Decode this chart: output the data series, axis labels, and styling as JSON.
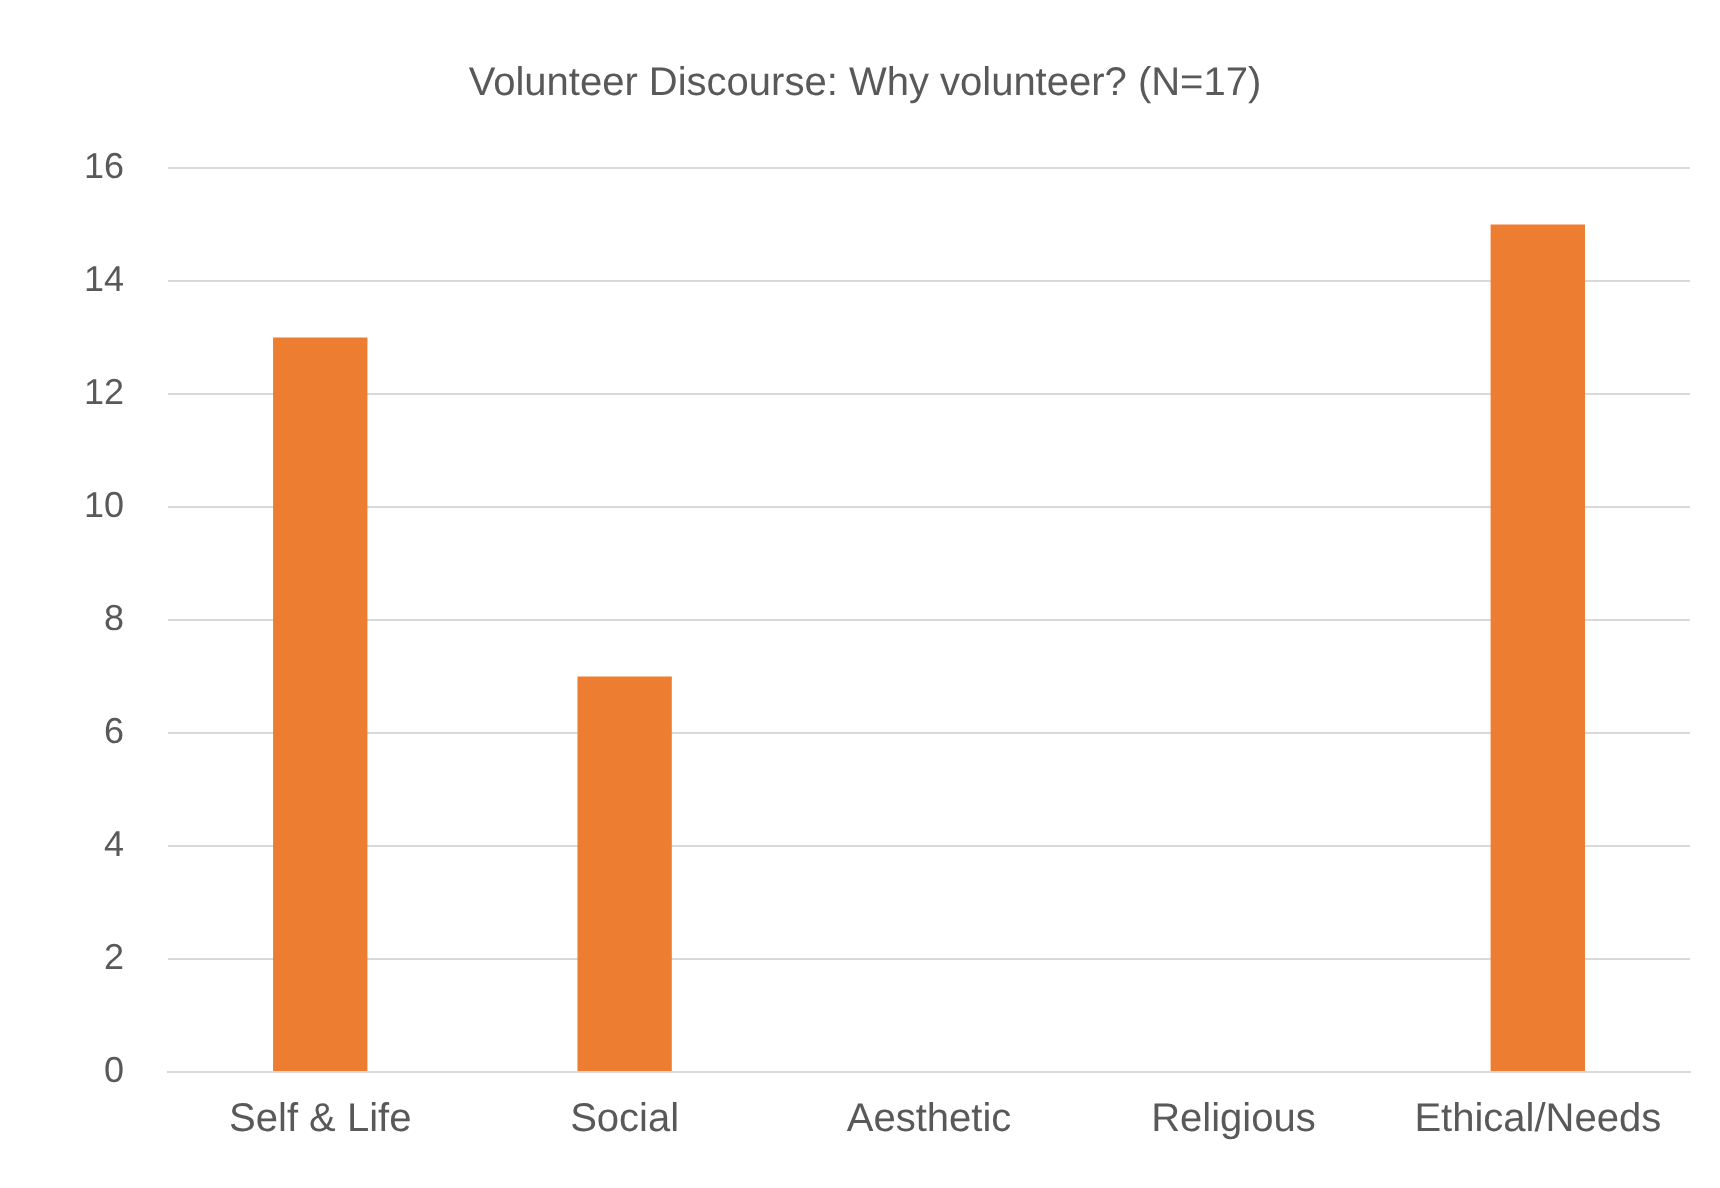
{
  "chart_data": {
    "type": "bar",
    "title": "Volunteer Discourse: Why volunteer? (N=17)",
    "categories": [
      "Self & Life",
      "Social",
      "Aesthetic",
      "Religious",
      "Ethical/Needs"
    ],
    "values": [
      13,
      7,
      0,
      0,
      15
    ],
    "color": "#ed7d31",
    "ylim": [
      0,
      16
    ],
    "yticks": [
      0,
      2,
      4,
      6,
      8,
      10,
      12,
      14,
      16
    ],
    "grid": "y",
    "legend": false
  }
}
